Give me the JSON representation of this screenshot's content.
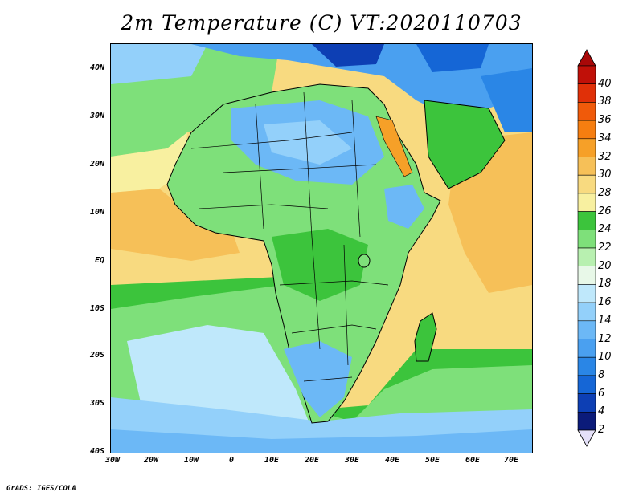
{
  "title": "2m Temperature (C) VT:2020110703",
  "credit": "GrADS: IGES/COLA",
  "map": {
    "variable": "2m Temperature",
    "units": "C",
    "lat_labels": [
      "40N",
      "30N",
      "20N",
      "10N",
      "EQ",
      "10S",
      "20S",
      "30S",
      "40S"
    ],
    "lon_labels": [
      "30W",
      "20W",
      "10W",
      "0",
      "10E",
      "20E",
      "30E",
      "40E",
      "50E",
      "60E",
      "70E"
    ]
  },
  "colorbar": {
    "levels": [
      "2",
      "4",
      "6",
      "8",
      "10",
      "12",
      "14",
      "16",
      "18",
      "20",
      "22",
      "24",
      "26",
      "28",
      "30",
      "32",
      "34",
      "36",
      "38",
      "40"
    ],
    "colors": [
      "#0b1b7a",
      "#0d3fb4",
      "#1566d6",
      "#2a86e6",
      "#4aa0f0",
      "#6cb8f6",
      "#93d0fa",
      "#bfe8fb",
      "#e8f8e8",
      "#b8f0b0",
      "#7ee07a",
      "#3cc43c",
      "#f8f0a0",
      "#f8da80",
      "#f6c058",
      "#f6a028",
      "#f67e10",
      "#f05a0a",
      "#e03008",
      "#c01008"
    ],
    "low_end_color": "#e4e0f8",
    "high_end_color": "#a80808"
  }
}
